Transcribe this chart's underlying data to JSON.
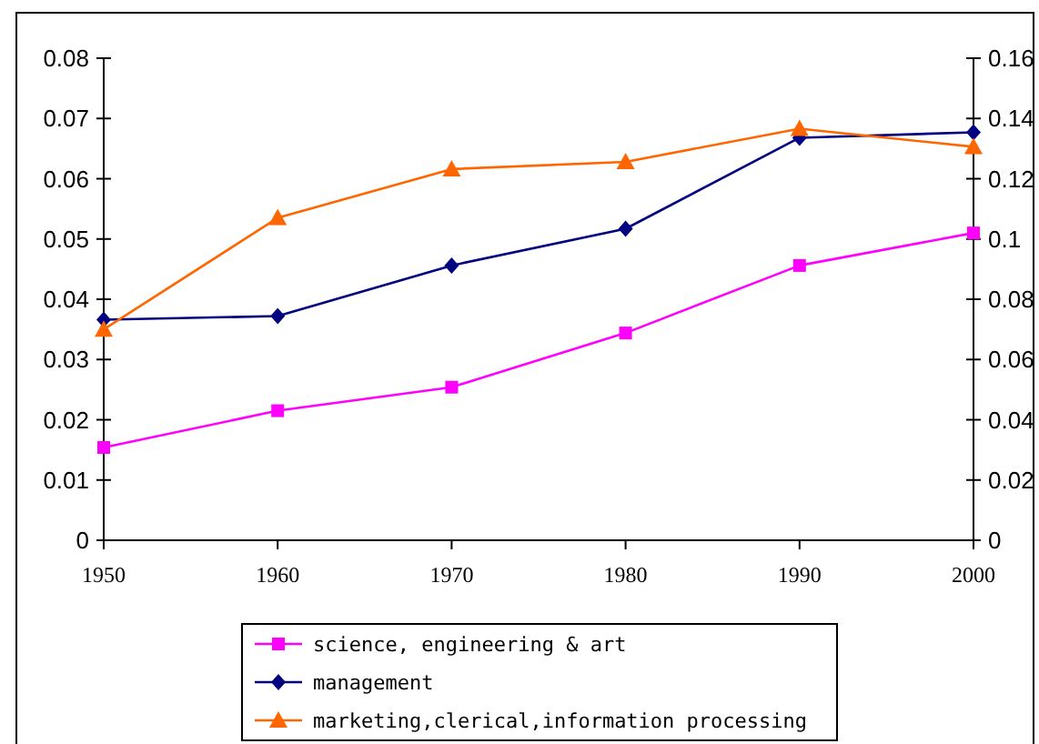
{
  "chart_data": {
    "type": "line",
    "x": [
      1950,
      1960,
      1970,
      1980,
      1990,
      2000
    ],
    "xlim": [
      1950,
      2000
    ],
    "xticks": [
      1950,
      1960,
      1970,
      1980,
      1990,
      2000
    ],
    "ylim": [
      0,
      0.08
    ],
    "yticks": [
      0,
      0.01,
      0.02,
      0.03,
      0.04,
      0.05,
      0.06,
      0.07,
      0.08
    ],
    "y2lim": [
      0,
      0.16
    ],
    "y2ticks": [
      0,
      0.02,
      0.04,
      0.06,
      0.08,
      0.1,
      0.12,
      0.14,
      0.16
    ],
    "legend": "bottom",
    "grid": false,
    "series": [
      {
        "name": "science, engineering & art",
        "color": "#ff00ff",
        "marker": "square",
        "values": [
          0.0154,
          0.0215,
          0.0254,
          0.0344,
          0.0456,
          0.051
        ]
      },
      {
        "name": "management",
        "color": "#000080",
        "marker": "diamond",
        "values": [
          0.0366,
          0.0372,
          0.0456,
          0.0517,
          0.0668,
          0.0677
        ]
      },
      {
        "name": "marketing,clerical,information processing",
        "color": "#ff6600",
        "marker": "triangle",
        "values": [
          0.035,
          0.0535,
          0.0616,
          0.0628,
          0.0683,
          0.0653
        ]
      }
    ]
  }
}
